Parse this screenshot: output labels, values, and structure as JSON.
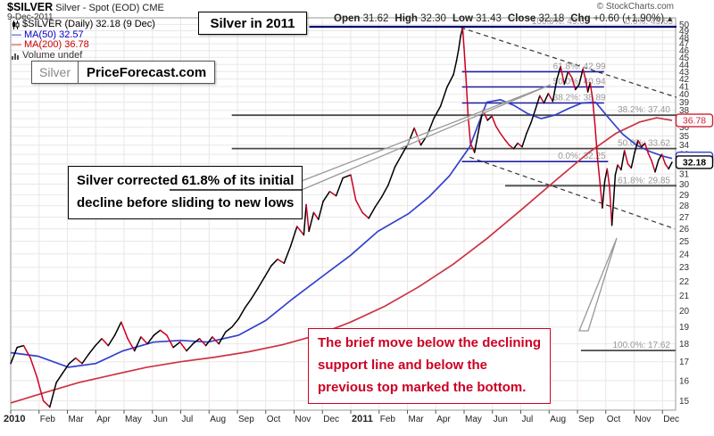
{
  "header": {
    "copyright": "© StockCharts.com",
    "symbol": "$SILVER",
    "symbol_desc": " Silver - Spot (EOD) CME",
    "date": "9-Dec-2011",
    "ohlc": {
      "open_label": "Open",
      "open": "31.62",
      "high_label": "High",
      "high": "32.30",
      "low_label": "Low",
      "low": "31.43",
      "close_label": "Close",
      "close": "32.18",
      "chg_label": "Chg",
      "chg": "+0.60 (+1.90%)",
      "chg_arrow": "▲"
    }
  },
  "legend": {
    "series": "$SILVER (Daily) 32.18 (9 Dec)",
    "dash": "—",
    "ma50": "MA(50) 32.57",
    "ma200": "MA(200) 36.78",
    "volume": "Volume undef"
  },
  "title_box": {
    "text": "Silver in 2011"
  },
  "brand_box": {
    "left": "Silver",
    "right": "PriceForecast.com"
  },
  "notes": {
    "black_line1": "Silver corrected 61.8% of its initial",
    "black_line2": "decline before sliding to new lows",
    "red_line1": "The brief move below the declining",
    "red_line2": "support line and below the",
    "red_line3": "previous top marked the bottom."
  },
  "colors": {
    "up": "#000000",
    "down": "#cc0022",
    "ma50": "#3340cc",
    "ma200": "#cc3344",
    "fib_blue": "#2020a0",
    "fib_navy": "#000070",
    "fib_dark": "#4a4a4a",
    "label_gray": "#999999",
    "grid_h": "#e8e8e8",
    "grid_v": "#f0e4e4",
    "border": "#999999",
    "tick_text": "#333333",
    "callout": "#999999"
  },
  "axis_boxes": [
    {
      "value": "36.78",
      "price": 36.78,
      "color": "#cc2233",
      "bold": false
    },
    {
      "value": "32.57",
      "price": 32.57,
      "color": "#3340cc",
      "bold": false
    },
    {
      "value": "32.18",
      "price": 32.18,
      "color": "#000000",
      "bold": true
    }
  ],
  "chart_data": {
    "type": "line",
    "title": "Silver in 2011",
    "symbol": "$SILVER Silver - Spot (EOD) CME",
    "y_log": true,
    "ylim": [
      14.5,
      51.4
    ],
    "y_ticks": [
      15,
      16,
      17,
      18,
      19,
      20,
      21,
      22,
      23,
      24,
      25,
      26,
      27,
      28,
      29,
      30,
      31,
      32,
      33,
      34,
      35,
      36,
      37,
      38,
      39,
      40,
      41,
      42,
      43,
      44,
      45,
      46,
      47,
      48,
      49,
      50
    ],
    "x_tick_labels": [
      "2010",
      "Feb",
      "Mar",
      "Apr",
      "May",
      "Jun",
      "Jul",
      "Aug",
      "Sep",
      "Oct",
      "Nov",
      "Dec",
      "2011",
      "Feb",
      "Mar",
      "Apr",
      "May",
      "Jun",
      "Jul",
      "Aug",
      "Sep",
      "Oct",
      "Nov",
      "Dec"
    ],
    "x_range_years": [
      2010.0,
      2011.958
    ],
    "price": [
      [
        2010.0,
        16.9
      ],
      [
        2010.019,
        17.8
      ],
      [
        2010.038,
        17.9
      ],
      [
        2010.058,
        17.2
      ],
      [
        2010.077,
        16.2
      ],
      [
        2010.096,
        15.0
      ],
      [
        2010.115,
        14.7
      ],
      [
        2010.134,
        15.9
      ],
      [
        2010.153,
        16.4
      ],
      [
        2010.172,
        16.9
      ],
      [
        2010.191,
        17.2
      ],
      [
        2010.21,
        16.9
      ],
      [
        2010.229,
        17.4
      ],
      [
        2010.249,
        17.9
      ],
      [
        2010.268,
        18.3
      ],
      [
        2010.287,
        17.9
      ],
      [
        2010.306,
        18.5
      ],
      [
        2010.325,
        19.3
      ],
      [
        2010.344,
        18.3
      ],
      [
        2010.364,
        17.6
      ],
      [
        2010.383,
        18.4
      ],
      [
        2010.402,
        18.0
      ],
      [
        2010.421,
        18.5
      ],
      [
        2010.44,
        18.8
      ],
      [
        2010.459,
        18.5
      ],
      [
        2010.478,
        17.8
      ],
      [
        2010.498,
        18.1
      ],
      [
        2010.517,
        17.6
      ],
      [
        2010.536,
        18.0
      ],
      [
        2010.555,
        18.3
      ],
      [
        2010.574,
        17.9
      ],
      [
        2010.593,
        18.4
      ],
      [
        2010.612,
        18.0
      ],
      [
        2010.632,
        18.7
      ],
      [
        2010.651,
        19.0
      ],
      [
        2010.67,
        19.5
      ],
      [
        2010.689,
        20.2
      ],
      [
        2010.708,
        20.8
      ],
      [
        2010.727,
        21.5
      ],
      [
        2010.747,
        22.3
      ],
      [
        2010.766,
        23.1
      ],
      [
        2010.785,
        23.6
      ],
      [
        2010.804,
        23.3
      ],
      [
        2010.823,
        24.6
      ],
      [
        2010.842,
        26.2
      ],
      [
        2010.862,
        25.5
      ],
      [
        2010.869,
        28.1
      ],
      [
        2010.877,
        25.8
      ],
      [
        2010.891,
        27.4
      ],
      [
        2010.905,
        26.8
      ],
      [
        2010.919,
        28.4
      ],
      [
        2010.938,
        29.3
      ],
      [
        2010.957,
        28.9
      ],
      [
        2010.977,
        30.6
      ],
      [
        2011.0,
        30.9
      ],
      [
        2011.015,
        28.5
      ],
      [
        2011.034,
        27.4
      ],
      [
        2011.053,
        26.9
      ],
      [
        2011.072,
        27.9
      ],
      [
        2011.091,
        28.8
      ],
      [
        2011.11,
        29.9
      ],
      [
        2011.13,
        31.7
      ],
      [
        2011.149,
        32.9
      ],
      [
        2011.168,
        34.1
      ],
      [
        2011.187,
        35.9
      ],
      [
        2011.206,
        34.0
      ],
      [
        2011.225,
        35.1
      ],
      [
        2011.244,
        37.0
      ],
      [
        2011.264,
        38.5
      ],
      [
        2011.283,
        40.9
      ],
      [
        2011.302,
        42.6
      ],
      [
        2011.311,
        44.5
      ],
      [
        2011.317,
        46.1
      ],
      [
        2011.323,
        48.2
      ],
      [
        2011.329,
        49.4
      ],
      [
        2011.333,
        46.5
      ],
      [
        2011.339,
        42.0
      ],
      [
        2011.345,
        37.5
      ],
      [
        2011.352,
        34.2
      ],
      [
        2011.364,
        33.2
      ],
      [
        2011.377,
        35.8
      ],
      [
        2011.389,
        38.0
      ],
      [
        2011.402,
        36.8
      ],
      [
        2011.415,
        37.3
      ],
      [
        2011.427,
        36.1
      ],
      [
        2011.44,
        35.3
      ],
      [
        2011.453,
        34.6
      ],
      [
        2011.466,
        34.0
      ],
      [
        2011.479,
        33.6
      ],
      [
        2011.491,
        34.2
      ],
      [
        2011.504,
        33.8
      ],
      [
        2011.517,
        35.3
      ],
      [
        2011.53,
        36.5
      ],
      [
        2011.543,
        38.1
      ],
      [
        2011.556,
        39.8
      ],
      [
        2011.568,
        38.9
      ],
      [
        2011.581,
        40.1
      ],
      [
        2011.594,
        39.1
      ],
      [
        2011.606,
        41.9
      ],
      [
        2011.617,
        43.7
      ],
      [
        2011.628,
        41.3
      ],
      [
        2011.639,
        43.0
      ],
      [
        2011.65,
        42.2
      ],
      [
        2011.661,
        40.6
      ],
      [
        2011.672,
        41.3
      ],
      [
        2011.683,
        43.4
      ],
      [
        2011.69,
        42.0
      ],
      [
        2011.697,
        40.3
      ],
      [
        2011.704,
        41.5
      ],
      [
        2011.711,
        39.5
      ],
      [
        2011.718,
        36.3
      ],
      [
        2011.726,
        32.5
      ],
      [
        2011.733,
        30.1
      ],
      [
        2011.74,
        27.8
      ],
      [
        2011.747,
        30.3
      ],
      [
        2011.754,
        31.5
      ],
      [
        2011.761,
        29.8
      ],
      [
        2011.768,
        26.3
      ],
      [
        2011.772,
        28.0
      ],
      [
        2011.778,
        30.9
      ],
      [
        2011.785,
        31.9
      ],
      [
        2011.795,
        31.4
      ],
      [
        2011.805,
        33.4
      ],
      [
        2011.815,
        32.0
      ],
      [
        2011.825,
        31.6
      ],
      [
        2011.835,
        33.2
      ],
      [
        2011.845,
        34.5
      ],
      [
        2011.855,
        33.8
      ],
      [
        2011.865,
        34.2
      ],
      [
        2011.875,
        33.1
      ],
      [
        2011.885,
        32.3
      ],
      [
        2011.895,
        31.2
      ],
      [
        2011.905,
        32.4
      ],
      [
        2011.915,
        33.0
      ],
      [
        2011.925,
        32.0
      ],
      [
        2011.935,
        31.5
      ],
      [
        2011.945,
        32.18
      ]
    ],
    "ma50": [
      [
        2010.0,
        17.5
      ],
      [
        2010.08,
        17.3
      ],
      [
        2010.17,
        16.7
      ],
      [
        2010.25,
        16.9
      ],
      [
        2010.33,
        17.6
      ],
      [
        2010.42,
        18.1
      ],
      [
        2010.5,
        18.2
      ],
      [
        2010.58,
        18.1
      ],
      [
        2010.67,
        18.5
      ],
      [
        2010.75,
        19.4
      ],
      [
        2010.83,
        20.8
      ],
      [
        2010.92,
        22.4
      ],
      [
        2011.0,
        23.9
      ],
      [
        2011.08,
        25.8
      ],
      [
        2011.17,
        27.3
      ],
      [
        2011.23,
        28.8
      ],
      [
        2011.29,
        30.8
      ],
      [
        2011.35,
        33.8
      ],
      [
        2011.4,
        39.0
      ],
      [
        2011.44,
        39.3
      ],
      [
        2011.48,
        38.6
      ],
      [
        2011.52,
        37.6
      ],
      [
        2011.56,
        37.0
      ],
      [
        2011.6,
        37.4
      ],
      [
        2011.64,
        38.2
      ],
      [
        2011.68,
        38.9
      ],
      [
        2011.72,
        39.0
      ],
      [
        2011.76,
        37.0
      ],
      [
        2011.8,
        35.2
      ],
      [
        2011.84,
        34.0
      ],
      [
        2011.88,
        33.3
      ],
      [
        2011.92,
        32.8
      ],
      [
        2011.945,
        32.57
      ]
    ],
    "ma200": [
      [
        2010.0,
        14.9
      ],
      [
        2010.1,
        15.4
      ],
      [
        2010.2,
        15.9
      ],
      [
        2010.3,
        16.3
      ],
      [
        2010.4,
        16.7
      ],
      [
        2010.5,
        17.0
      ],
      [
        2010.6,
        17.25
      ],
      [
        2010.7,
        17.55
      ],
      [
        2010.8,
        17.95
      ],
      [
        2010.9,
        18.5
      ],
      [
        2011.0,
        19.3
      ],
      [
        2011.1,
        20.3
      ],
      [
        2011.2,
        21.6
      ],
      [
        2011.3,
        23.2
      ],
      [
        2011.4,
        25.2
      ],
      [
        2011.5,
        27.6
      ],
      [
        2011.6,
        30.3
      ],
      [
        2011.7,
        33.2
      ],
      [
        2011.78,
        35.3
      ],
      [
        2011.85,
        36.6
      ],
      [
        2011.9,
        37.1
      ],
      [
        2011.945,
        36.78
      ]
    ],
    "hlines": [
      {
        "price": 49.63,
        "from": 2010.878,
        "to": 2011.958,
        "color": "navy",
        "width": 2.2
      },
      {
        "price": 42.99,
        "from": 2011.327,
        "to": 2011.745,
        "color": "blue",
        "width": 1.6
      },
      {
        "price": 40.94,
        "from": 2011.327,
        "to": 2011.745,
        "color": "blue",
        "width": 1.6
      },
      {
        "price": 38.89,
        "from": 2011.327,
        "to": 2011.745,
        "color": "blue",
        "width": 1.6
      },
      {
        "price": 32.25,
        "from": 2011.327,
        "to": 2011.757,
        "color": "blue",
        "width": 1.6
      },
      {
        "price": 37.4,
        "from": 2010.65,
        "to": 2011.958,
        "color": "dark",
        "width": 1.8
      },
      {
        "price": 33.62,
        "from": 2010.65,
        "to": 2011.958,
        "color": "dark",
        "width": 1.8
      },
      {
        "price": 29.85,
        "from": 2011.454,
        "to": 2011.958,
        "color": "dark",
        "width": 1.8
      },
      {
        "price": 17.62,
        "from": 2011.677,
        "to": 2011.955,
        "color": "dark",
        "width": 1.8
      }
    ],
    "fib_labels": [
      {
        "text": "100.0%: 49.63",
        "price": 49.63,
        "end": 2011.712
      },
      {
        "text": "0.0%: 49.63",
        "price": 49.63,
        "end": 2011.958
      },
      {
        "text": "61.8%: 42.99",
        "price": 42.99,
        "end": 2011.76
      },
      {
        "text": "50.0%: 40.94",
        "price": 40.94,
        "end": 2011.76
      },
      {
        "text": "38.2%: 38.89",
        "price": 38.89,
        "end": 2011.76
      },
      {
        "text": "0.0%: 32.25",
        "price": 32.25,
        "end": 2011.76
      },
      {
        "text": "38.2%: 37.40",
        "price": 37.4,
        "end": 2011.95
      },
      {
        "text": "50.0%: 33.62",
        "price": 33.62,
        "end": 2011.95
      },
      {
        "text": "61.8%: 29.85",
        "price": 29.85,
        "end": 2011.95
      },
      {
        "text": "100.0%: 17.62",
        "price": 17.62,
        "end": 2011.95
      }
    ],
    "trendlines": [
      {
        "t1": 2011.324,
        "p1": 49.5,
        "t2": 2011.958,
        "p2": 39.6,
        "style": "dashed"
      },
      {
        "t1": 2011.35,
        "p1": 32.7,
        "t2": 2011.953,
        "p2": 26.0,
        "style": "dashed"
      }
    ]
  }
}
